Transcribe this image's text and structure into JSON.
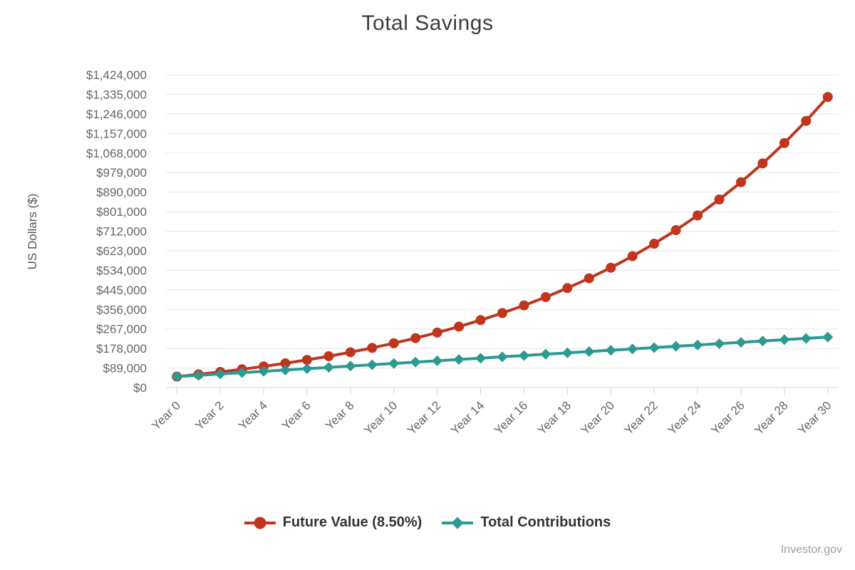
{
  "header": {
    "title": "Total Savings"
  },
  "chart_data": {
    "type": "line",
    "title": "Total Savings",
    "xlabel": "",
    "ylabel": "US Dollars ($)",
    "x": [
      0,
      1,
      2,
      3,
      4,
      5,
      6,
      7,
      8,
      9,
      10,
      11,
      12,
      13,
      14,
      15,
      16,
      17,
      18,
      19,
      20,
      21,
      22,
      23,
      24,
      25,
      26,
      27,
      28,
      29,
      30
    ],
    "x_tick_years": [
      0,
      2,
      4,
      6,
      8,
      10,
      12,
      14,
      16,
      18,
      20,
      22,
      24,
      26,
      28,
      30
    ],
    "x_tick_labels": [
      "Year 0",
      "Year 2",
      "Year 4",
      "Year 6",
      "Year 8",
      "Year 10",
      "Year 12",
      "Year 14",
      "Year 16",
      "Year 18",
      "Year 20",
      "Year 22",
      "Year 24",
      "Year 26",
      "Year 28",
      "Year 30"
    ],
    "ylim": [
      0,
      1424000
    ],
    "y_tick_step": 89000,
    "y_tick_labels": [
      "$0",
      "$89,000",
      "$178,000",
      "$267,000",
      "$356,000",
      "$445,000",
      "$534,000",
      "$623,000",
      "$712,000",
      "$801,000",
      "$890,000",
      "$979,000",
      "$1,068,000",
      "$1,157,000",
      "$1,246,000",
      "$1,335,000",
      "$1,424,000"
    ],
    "grid": true,
    "legend_position": "bottom",
    "grid_color": "#e6e6e6",
    "axis_line_color": "#ccd6eb",
    "label_color": "#666666",
    "series": [
      {
        "name": "Future Value (8.50%)",
        "color": "#c0351d",
        "marker": "circle",
        "values": [
          50000,
          60250,
          71371,
          83438,
          96530,
          110735,
          126148,
          142870,
          161014,
          180700,
          202060,
          225235,
          250380,
          277662,
          307263,
          339381,
          374228,
          412037,
          453061,
          497571,
          545864,
          598263,
          655115,
          716800,
          783728,
          856345,
          935134,
          1020621,
          1113373,
          1214010,
          1323201
        ]
      },
      {
        "name": "Total Contributions",
        "color": "#2b9a92",
        "marker": "diamond",
        "values": [
          50000,
          56000,
          62000,
          68000,
          74000,
          80000,
          86000,
          92000,
          98000,
          104000,
          110000,
          116000,
          122000,
          128000,
          134000,
          140000,
          146000,
          152000,
          158000,
          164000,
          170000,
          176000,
          182000,
          188000,
          194000,
          200000,
          206000,
          212000,
          218000,
          224000,
          230000
        ]
      }
    ]
  },
  "legend": {
    "items": [
      {
        "label": "Future Value (8.50%)",
        "color": "#c0351d",
        "marker": "circle"
      },
      {
        "label": "Total Contributions",
        "color": "#2b9a92",
        "marker": "diamond"
      }
    ]
  },
  "attribution": {
    "text": "Investor.gov"
  }
}
